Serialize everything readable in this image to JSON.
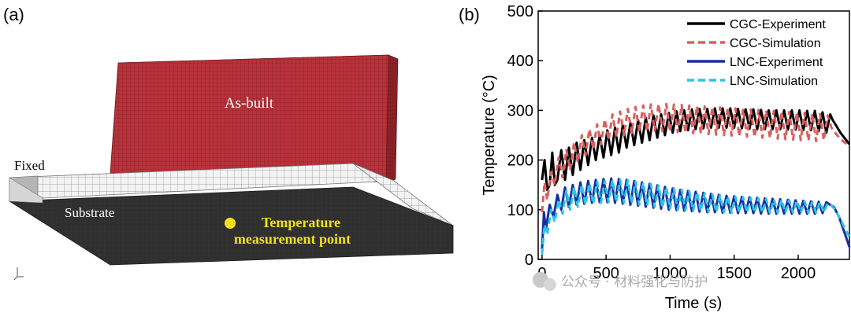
{
  "panel_a": {
    "label": "(a)",
    "as_built_label": "As-built",
    "fixed_label": "Fixed",
    "substrate_label": "Substrate",
    "point_label_line1": "Temperature",
    "point_label_line2": "measurement point",
    "colors": {
      "as_built": "#b8323a",
      "substrate": "#2f2f2f",
      "point": "#f2e21a",
      "point_text": "#f2e21a"
    }
  },
  "panel_b": {
    "label": "(b)"
  },
  "watermark": "公众号 · 材料强化与防护",
  "chart_data": {
    "type": "line",
    "xlabel": "Time (s)",
    "ylabel": "Temperature (°C)",
    "xlim": [
      -30,
      2400
    ],
    "ylim": [
      0,
      500
    ],
    "xticks": [
      0,
      500,
      1000,
      1500,
      2000
    ],
    "yticks": [
      0,
      100,
      200,
      300,
      400,
      500
    ],
    "legend_position": "top-right",
    "series": [
      {
        "name": "CGC-Experiment",
        "color": "#000000",
        "dash": "solid",
        "x": [
          0,
          20,
          40,
          60,
          80,
          100,
          120,
          150,
          180,
          210,
          240,
          270,
          300,
          330,
          360,
          390,
          420,
          450,
          480,
          510,
          540,
          570,
          600,
          630,
          660,
          690,
          720,
          750,
          780,
          810,
          840,
          870,
          900,
          930,
          960,
          990,
          1020,
          1050,
          1080,
          1110,
          1140,
          1170,
          1200,
          1230,
          1260,
          1290,
          1320,
          1350,
          1380,
          1410,
          1440,
          1470,
          1500,
          1530,
          1560,
          1590,
          1620,
          1650,
          1680,
          1710,
          1740,
          1770,
          1800,
          1830,
          1860,
          1890,
          1920,
          1950,
          1980,
          2010,
          2040,
          2070,
          2100,
          2130,
          2160,
          2190,
          2220,
          2250,
          2270,
          2300,
          2330,
          2360,
          2400
        ],
        "y": [
          160,
          200,
          140,
          150,
          215,
          150,
          160,
          220,
          160,
          225,
          170,
          235,
          180,
          240,
          190,
          245,
          200,
          250,
          205,
          260,
          210,
          265,
          215,
          270,
          225,
          275,
          230,
          280,
          235,
          285,
          240,
          290,
          245,
          292,
          250,
          295,
          255,
          298,
          258,
          300,
          260,
          302,
          262,
          303,
          264,
          303,
          265,
          304,
          265,
          304,
          265,
          304,
          265,
          303,
          264,
          302,
          263,
          302,
          262,
          301,
          262,
          300,
          262,
          300,
          262,
          300,
          261,
          300,
          261,
          300,
          260,
          299,
          260,
          299,
          258,
          296,
          255,
          292,
          280,
          268,
          255,
          245,
          232
        ]
      },
      {
        "name": "CGC-Simulation",
        "color": "#d95f5f",
        "dash": "dash",
        "x": [
          0,
          20,
          40,
          70,
          100,
          130,
          160,
          190,
          220,
          250,
          280,
          310,
          340,
          370,
          400,
          430,
          460,
          490,
          520,
          550,
          580,
          610,
          640,
          670,
          700,
          730,
          760,
          790,
          820,
          850,
          880,
          910,
          940,
          970,
          1000,
          1030,
          1060,
          1090,
          1120,
          1150,
          1180,
          1210,
          1240,
          1270,
          1300,
          1330,
          1360,
          1390,
          1420,
          1450,
          1480,
          1510,
          1540,
          1570,
          1600,
          1630,
          1660,
          1690,
          1720,
          1750,
          1780,
          1810,
          1840,
          1870,
          1900,
          1930,
          1960,
          1990,
          2020,
          2050,
          2080,
          2110,
          2140,
          2170,
          2200,
          2230,
          2260,
          2290,
          2320,
          2350,
          2400
        ],
        "y": [
          95,
          155,
          120,
          175,
          150,
          205,
          165,
          220,
          180,
          235,
          195,
          250,
          210,
          262,
          222,
          272,
          232,
          282,
          240,
          292,
          246,
          298,
          250,
          303,
          254,
          307,
          257,
          310,
          258,
          312,
          259,
          313,
          258,
          313,
          257,
          312,
          256,
          311,
          255,
          310,
          254,
          309,
          253,
          308,
          252,
          307,
          251,
          306,
          250,
          305,
          249,
          304,
          248,
          303,
          247,
          302,
          246,
          301,
          245,
          300,
          244,
          299,
          243,
          298,
          242,
          297,
          241,
          296,
          240,
          295,
          239,
          294,
          238,
          293,
          240,
          290,
          265,
          255,
          245,
          238,
          228
        ]
      },
      {
        "name": "LNC-Experiment",
        "color": "#1a2f9e",
        "dash": "solid",
        "x": [
          0,
          15,
          30,
          60,
          90,
          120,
          150,
          180,
          210,
          240,
          270,
          300,
          330,
          360,
          390,
          420,
          450,
          480,
          510,
          540,
          570,
          600,
          630,
          660,
          690,
          720,
          750,
          780,
          810,
          840,
          870,
          900,
          930,
          960,
          990,
          1020,
          1050,
          1080,
          1110,
          1140,
          1170,
          1200,
          1230,
          1260,
          1290,
          1320,
          1350,
          1380,
          1410,
          1440,
          1470,
          1500,
          1530,
          1560,
          1590,
          1620,
          1650,
          1680,
          1710,
          1740,
          1770,
          1800,
          1830,
          1860,
          1890,
          1920,
          1950,
          1980,
          2010,
          2040,
          2070,
          2100,
          2130,
          2160,
          2190,
          2220,
          2250,
          2280,
          2320,
          2360,
          2400
        ],
        "y": [
          20,
          95,
          60,
          110,
          85,
          130,
          100,
          145,
          105,
          150,
          110,
          155,
          112,
          158,
          114,
          160,
          115,
          162,
          115,
          163,
          114,
          162,
          112,
          160,
          110,
          158,
          108,
          155,
          106,
          152,
          104,
          149,
          102,
          146,
          100,
          143,
          99,
          140,
          98,
          138,
          97,
          136,
          96,
          134,
          95,
          132,
          95,
          130,
          94,
          128,
          94,
          127,
          93,
          126,
          93,
          125,
          93,
          124,
          92,
          123,
          92,
          122,
          92,
          121,
          92,
          120,
          92,
          119,
          92,
          118,
          92,
          117,
          92,
          116,
          93,
          115,
          110,
          105,
          85,
          55,
          25
        ]
      },
      {
        "name": "LNC-Simulation",
        "color": "#2ec4e8",
        "dash": "dash",
        "x": [
          0,
          20,
          40,
          70,
          100,
          130,
          160,
          190,
          220,
          250,
          280,
          310,
          340,
          370,
          400,
          430,
          460,
          490,
          520,
          550,
          580,
          610,
          640,
          670,
          700,
          730,
          760,
          790,
          820,
          850,
          880,
          910,
          940,
          970,
          1000,
          1030,
          1060,
          1090,
          1120,
          1150,
          1180,
          1210,
          1240,
          1270,
          1300,
          1330,
          1360,
          1390,
          1420,
          1450,
          1480,
          1510,
          1540,
          1570,
          1600,
          1630,
          1660,
          1690,
          1720,
          1750,
          1780,
          1810,
          1840,
          1870,
          1900,
          1930,
          1960,
          1990,
          2020,
          2050,
          2080,
          2110,
          2140,
          2170,
          2200,
          2230,
          2260,
          2290,
          2330,
          2370,
          2400
        ],
        "y": [
          10,
          70,
          50,
          100,
          75,
          120,
          92,
          138,
          100,
          145,
          106,
          150,
          110,
          153,
          112,
          156,
          114,
          158,
          115,
          160,
          115,
          160,
          114,
          159,
          112,
          157,
          110,
          155,
          108,
          152,
          106,
          149,
          104,
          146,
          102,
          143,
          100,
          140,
          99,
          137,
          98,
          135,
          97,
          133,
          96,
          131,
          95,
          129,
          95,
          127,
          94,
          126,
          94,
          125,
          94,
          124,
          94,
          123,
          94,
          122,
          94,
          121,
          94,
          120,
          94,
          119,
          94,
          118,
          94,
          117,
          94,
          116,
          94,
          115,
          95,
          113,
          108,
          100,
          80,
          60,
          45
        ]
      }
    ]
  }
}
